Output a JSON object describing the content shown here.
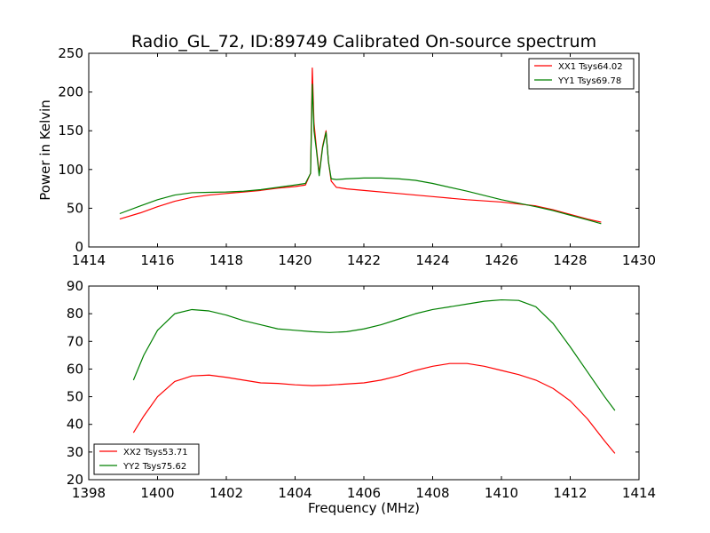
{
  "colors": {
    "xx": "#ff0000",
    "yy": "#008000",
    "axes": "#000000",
    "background": "#ffffff"
  },
  "chart_data": [
    {
      "type": "line",
      "title": "Radio_GL_72, ID:89749 Calibrated On-source spectrum",
      "xlabel": "",
      "ylabel": "Power in Kelvin",
      "xlim": [
        1414,
        1430
      ],
      "ylim": [
        0,
        250
      ],
      "xticks": [
        "1414",
        "1416",
        "1418",
        "1420",
        "1422",
        "1424",
        "1426",
        "1428",
        "1430"
      ],
      "yticks": [
        "0",
        "50",
        "100",
        "150",
        "200",
        "250"
      ],
      "legend_placement": "top-right",
      "series": [
        {
          "name": "XX1 Tsys64.02",
          "color": "#ff0000",
          "x": [
            1414.9,
            1415.5,
            1416.0,
            1416.5,
            1417.0,
            1417.5,
            1418.0,
            1418.5,
            1419.0,
            1419.5,
            1420.0,
            1420.3,
            1420.45,
            1420.5,
            1420.55,
            1420.62,
            1420.7,
            1420.8,
            1420.9,
            1420.97,
            1421.05,
            1421.2,
            1421.5,
            1422.0,
            1423.0,
            1424.0,
            1425.0,
            1426.0,
            1427.0,
            1427.5,
            1428.0,
            1428.5,
            1428.9
          ],
          "y": [
            36,
            44,
            52,
            59,
            64,
            67,
            69,
            71,
            73,
            76,
            78,
            80,
            95,
            231,
            160,
            128,
            95,
            130,
            150,
            110,
            85,
            77,
            75,
            73,
            69,
            65,
            61,
            58,
            53,
            48,
            42,
            36,
            32
          ]
        },
        {
          "name": "YY1 Tsys69.78",
          "color": "#008000",
          "x": [
            1414.9,
            1415.5,
            1416.0,
            1416.5,
            1417.0,
            1417.5,
            1418.0,
            1418.5,
            1419.0,
            1419.5,
            1420.0,
            1420.3,
            1420.45,
            1420.5,
            1420.55,
            1420.62,
            1420.7,
            1420.8,
            1420.9,
            1420.97,
            1421.05,
            1421.2,
            1421.5,
            1422.0,
            1422.5,
            1423.0,
            1423.5,
            1424.0,
            1425.0,
            1426.0,
            1427.0,
            1427.5,
            1428.0,
            1428.5,
            1428.9
          ],
          "y": [
            43,
            53,
            61,
            67,
            70,
            70.5,
            71,
            72,
            74,
            77,
            80,
            82,
            95,
            210,
            150,
            125,
            92,
            128,
            148,
            110,
            88,
            87,
            88,
            89,
            89,
            88,
            86,
            82,
            72,
            61,
            52,
            47,
            41,
            35,
            30
          ]
        }
      ]
    },
    {
      "type": "line",
      "title": "",
      "xlabel": "Frequency (MHz)",
      "ylabel": "",
      "xlim": [
        1398,
        1414
      ],
      "ylim": [
        20,
        90
      ],
      "xticks": [
        "1398",
        "1400",
        "1402",
        "1404",
        "1406",
        "1408",
        "1410",
        "1412",
        "1414"
      ],
      "yticks": [
        "20",
        "30",
        "40",
        "50",
        "60",
        "70",
        "80",
        "90"
      ],
      "legend_placement": "bottom-left",
      "series": [
        {
          "name": "XX2 Tsys53.71",
          "color": "#ff0000",
          "x": [
            1399.3,
            1399.6,
            1400.0,
            1400.5,
            1401.0,
            1401.5,
            1402.0,
            1402.5,
            1403.0,
            1403.5,
            1404.0,
            1404.5,
            1405.0,
            1405.5,
            1406.0,
            1406.5,
            1407.0,
            1407.5,
            1408.0,
            1408.5,
            1409.0,
            1409.5,
            1410.0,
            1410.5,
            1411.0,
            1411.5,
            1412.0,
            1412.5,
            1413.0,
            1413.3
          ],
          "y": [
            37,
            43,
            50,
            55.5,
            57.5,
            57.8,
            57,
            56,
            55,
            54.8,
            54.3,
            54,
            54.2,
            54.6,
            55,
            56,
            57.5,
            59.5,
            61,
            62,
            62,
            61,
            59.5,
            58,
            56,
            53,
            48.5,
            42,
            34,
            29.5
          ]
        },
        {
          "name": "YY2 Tsys75.62",
          "color": "#008000",
          "x": [
            1399.3,
            1399.6,
            1400.0,
            1400.5,
            1401.0,
            1401.5,
            1402.0,
            1402.5,
            1403.0,
            1403.5,
            1404.0,
            1404.5,
            1405.0,
            1405.5,
            1406.0,
            1406.5,
            1407.0,
            1407.5,
            1408.0,
            1408.5,
            1409.0,
            1409.5,
            1410.0,
            1410.5,
            1411.0,
            1411.5,
            1412.0,
            1412.5,
            1413.0,
            1413.3
          ],
          "y": [
            56,
            65,
            74,
            80,
            81.5,
            81,
            79.5,
            77.5,
            76,
            74.5,
            74,
            73.5,
            73.2,
            73.5,
            74.5,
            76,
            78,
            80,
            81.5,
            82.5,
            83.5,
            84.5,
            85,
            84.8,
            82.5,
            76.5,
            68,
            59,
            50,
            45
          ]
        }
      ]
    }
  ]
}
